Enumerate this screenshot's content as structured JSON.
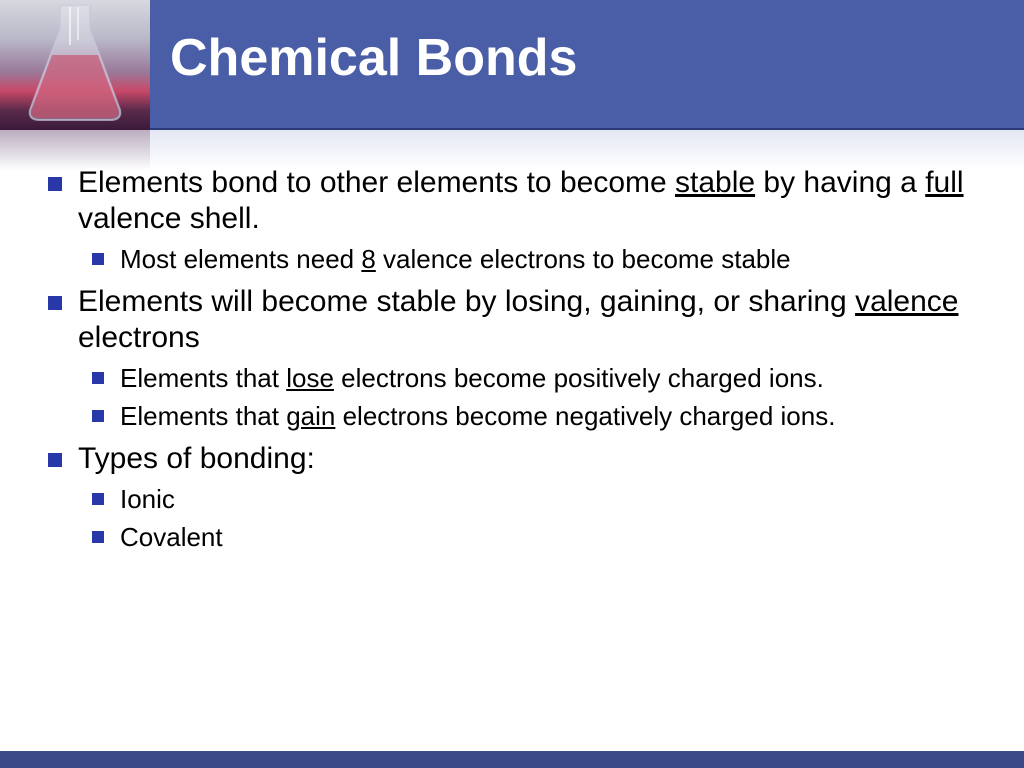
{
  "colors": {
    "header_bg": "#4a5ea8",
    "bullet": "#2838a8",
    "title_text": "#ffffff",
    "body_text": "#000000",
    "footer_bg": "#3a4a88"
  },
  "title": "Chemical Bonds",
  "bullets": [
    {
      "segments": [
        {
          "t": "Elements bond to other elements to become "
        },
        {
          "t": "stable",
          "u": true
        },
        {
          "t": " by having a "
        },
        {
          "t": "full",
          "u": true
        },
        {
          "t": " valence shell."
        }
      ],
      "children": [
        {
          "segments": [
            {
              "t": "Most elements need "
            },
            {
              "t": "8",
              "u": true
            },
            {
              "t": " valence electrons to become stable"
            }
          ]
        }
      ]
    },
    {
      "segments": [
        {
          "t": "Elements will become stable by losing, gaining, or sharing "
        },
        {
          "t": "valence",
          "u": true
        },
        {
          "t": " electrons"
        }
      ],
      "children": [
        {
          "segments": [
            {
              "t": "Elements that "
            },
            {
              "t": "lose",
              "u": true
            },
            {
              "t": " electrons become positively charged ions."
            }
          ]
        },
        {
          "segments": [
            {
              "t": "Elements that "
            },
            {
              "t": "gain",
              "u": true
            },
            {
              "t": " electrons become negatively charged ions."
            }
          ]
        }
      ]
    },
    {
      "segments": [
        {
          "t": "Types of bonding:"
        }
      ],
      "children": [
        {
          "segments": [
            {
              "t": "Ionic"
            }
          ]
        },
        {
          "segments": [
            {
              "t": "Covalent"
            }
          ]
        }
      ]
    }
  ]
}
